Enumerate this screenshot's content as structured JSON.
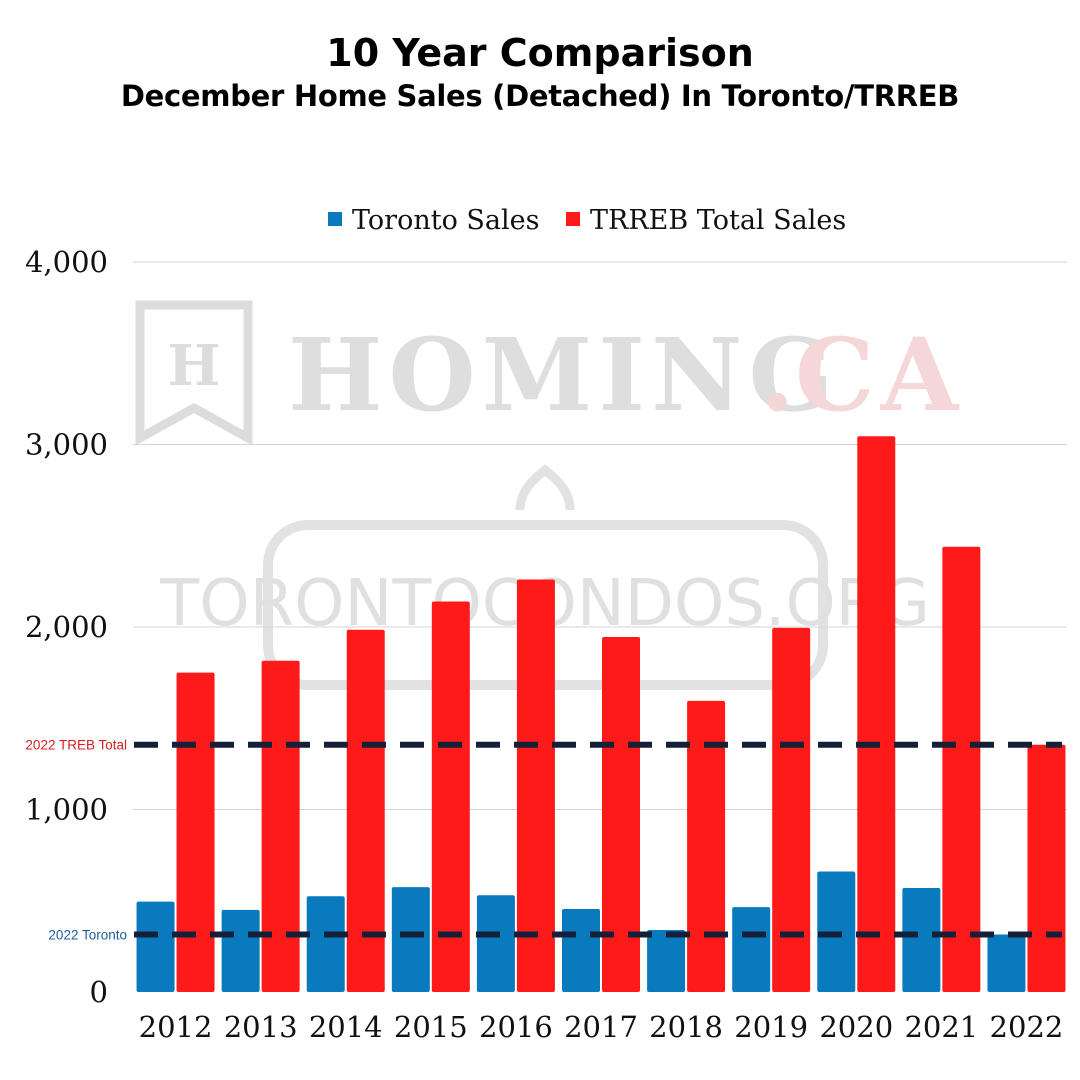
{
  "chart_data": {
    "type": "bar",
    "title": "10 Year Comparison",
    "subtitle": "December Home Sales (Detached) In Toronto/TRREB",
    "categories": [
      "2012",
      "2013",
      "2014",
      "2015",
      "2016",
      "2017",
      "2018",
      "2019",
      "2020",
      "2021",
      "2022"
    ],
    "series": [
      {
        "name": "Toronto Sales",
        "color": "#0a7abf",
        "values": [
          495,
          450,
          525,
          575,
          530,
          455,
          340,
          465,
          660,
          570,
          315
        ]
      },
      {
        "name": "TRREB Total Sales",
        "color": "#ff1a1a",
        "values": [
          1750,
          1815,
          1985,
          2140,
          2260,
          1945,
          1595,
          1995,
          3045,
          2440,
          1355
        ]
      }
    ],
    "ylim": [
      0,
      4000
    ],
    "yticks": [
      "0",
      "1,000",
      "2,000",
      "3,000",
      "4,000"
    ],
    "ytick_values": [
      0,
      1000,
      2000,
      3000,
      4000
    ],
    "grid": true,
    "legend": "top-center",
    "reference_lines": [
      {
        "label": "2022 TREB Total",
        "value": 1355,
        "color": "#d62020"
      },
      {
        "label": "2022 Toronto",
        "value": 315,
        "color": "#1f5fa0"
      }
    ],
    "xlabel": "",
    "ylabel": ""
  },
  "watermark": {
    "logo_letter": "H",
    "brand_main": "HOMING",
    "brand_dot": ".",
    "brand_tld": "CA",
    "site": "TORONTOCONDOS.ORG"
  }
}
